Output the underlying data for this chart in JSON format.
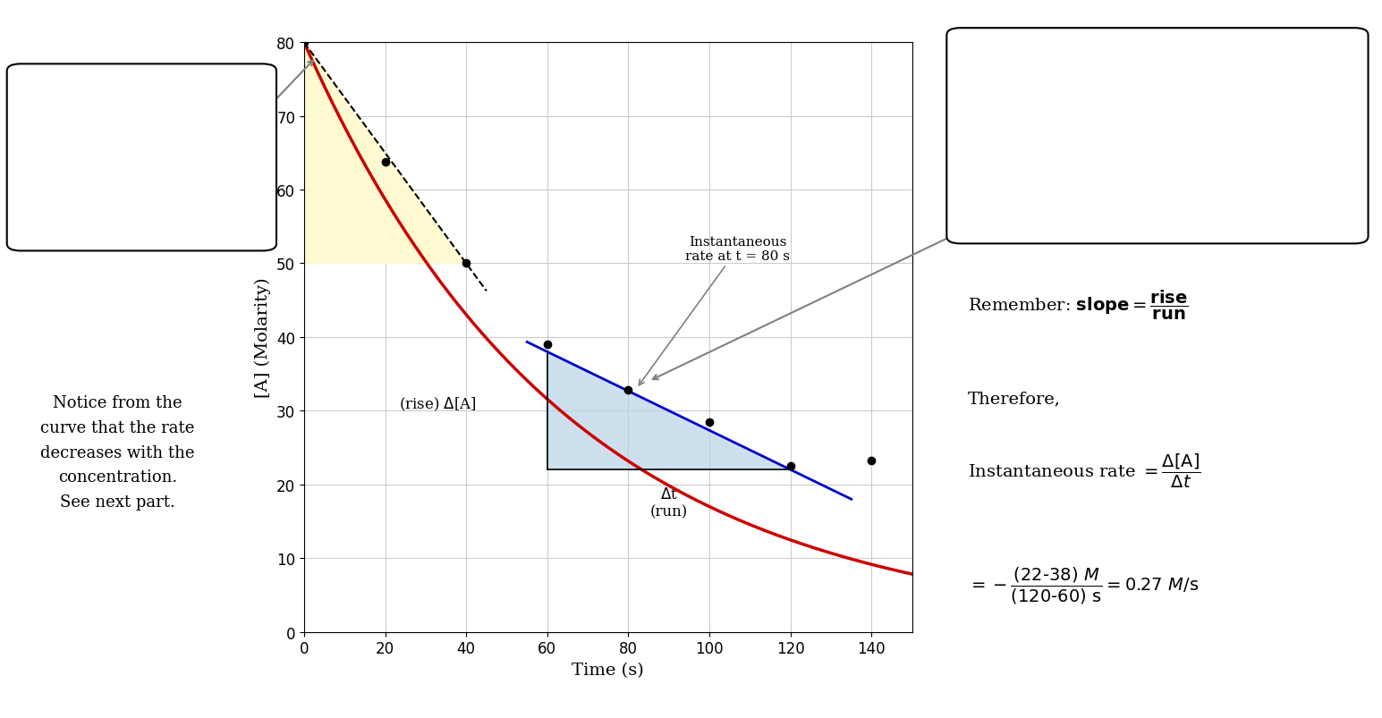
{
  "xlabel": "Time (s)",
  "ylabel": "[A] (Molarity)",
  "xlim": [
    0,
    150
  ],
  "ylim": [
    0,
    80
  ],
  "xticks": [
    0,
    20,
    40,
    60,
    80,
    100,
    120,
    140
  ],
  "yticks": [
    0,
    10,
    20,
    30,
    40,
    50,
    60,
    70,
    80
  ],
  "curve_color": "#cc0000",
  "curve_A0": 80,
  "curve_k": 0.0155,
  "data_points": [
    [
      0,
      80
    ],
    [
      20,
      63.8
    ],
    [
      40,
      50
    ],
    [
      60,
      39
    ],
    [
      80,
      32.8
    ],
    [
      100,
      28.5
    ],
    [
      120,
      22.5
    ],
    [
      140,
      23.2
    ]
  ],
  "blue_tangent_color": "#0000cc",
  "dot_color": "#000000",
  "bg_color": "#ffffff",
  "grid_color": "#cccccc",
  "yellow_color": "#fffacd",
  "blue_color": "#b8d4e8",
  "tangent80_slope": -0.2667,
  "tangent80_intercept": 54.0,
  "tangent0_slope": -0.75,
  "tangent0_y0": 80,
  "axis_font_size": 14,
  "tick_font_size": 12
}
